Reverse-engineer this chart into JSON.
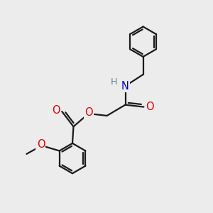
{
  "bg_color": "#ececec",
  "bond_color": "#1a1a1a",
  "bond_width": 1.6,
  "atom_colors": {
    "O": "#dd0000",
    "N": "#0000cc",
    "H": "#4a9090",
    "C": "#1a1a1a"
  },
  "font_size": 9.5,
  "fig_size": [
    3.0,
    3.0
  ],
  "dpi": 100
}
